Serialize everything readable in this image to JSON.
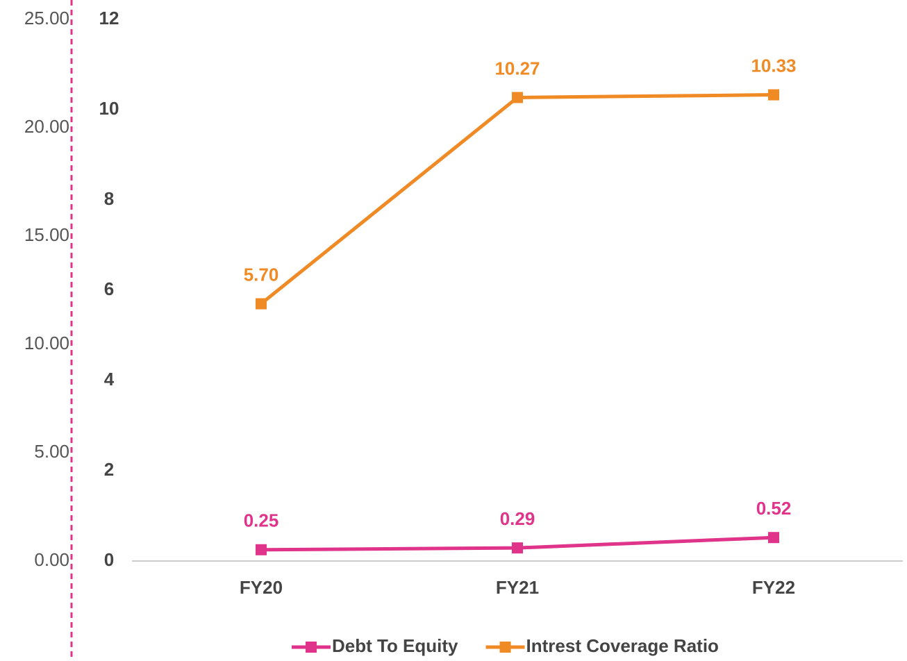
{
  "chart_data": {
    "type": "line",
    "categories": [
      "FY20",
      "FY21",
      "FY22"
    ],
    "series": [
      {
        "name": "Debt To Equity",
        "color": "#e0338a",
        "values": [
          0.25,
          0.29,
          0.52
        ],
        "value_labels": [
          "0.25",
          "0.29",
          "0.52"
        ]
      },
      {
        "name": "Intrest Coverage Ratio",
        "color": "#f08a24",
        "values": [
          5.7,
          10.27,
          10.33
        ],
        "value_labels": [
          "5.70",
          "10.27",
          "10.33"
        ]
      }
    ],
    "ylim": [
      0,
      12
    ],
    "yticks": [
      0,
      2,
      4,
      6,
      8,
      10,
      12
    ],
    "y2lim": [
      0,
      25
    ],
    "y2ticks": [
      {
        "value": 0,
        "label": "0.00"
      },
      {
        "value": 5,
        "label": "5.00"
      },
      {
        "value": 10,
        "label": "10.00"
      },
      {
        "value": 15,
        "label": "15.00"
      },
      {
        "value": 20,
        "label": "20.00"
      },
      {
        "value": 25,
        "label": "25.00"
      }
    ],
    "legend": "bottom"
  }
}
